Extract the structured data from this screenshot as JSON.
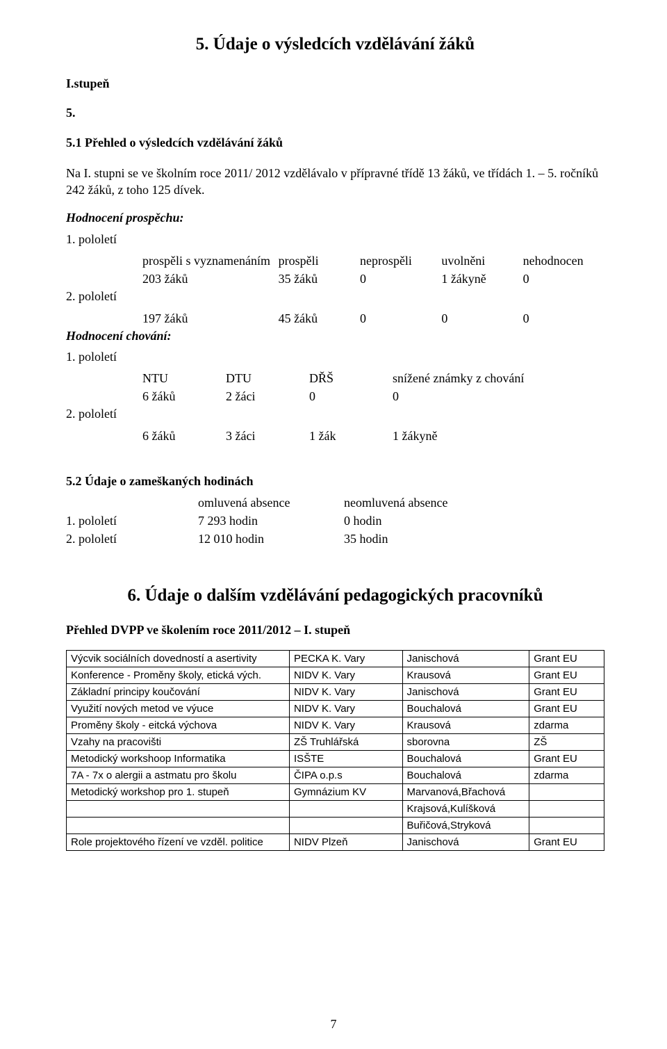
{
  "title_main": "5.   Údaje o výsledcích vzdělávání žáků",
  "stupen": "I.stupeň",
  "sec51_num": "5.",
  "sec51_title": "5.1 Přehled o výsledcích vzdělávání žáků",
  "para1": "Na I. stupni se ve školním roce 2011/ 2012 vzdělávalo v přípravné třídě 13 žáků, ve třídách 1. – 5. ročníků 242 žáků, z toho 125 dívek.",
  "hod_prospech_label": "Hodnocení prospěchu:",
  "pol1_label": "1. pololetí",
  "pol2_label": "2. pololetí",
  "prospech_headers": {
    "h1": "prospěli s vyznamenáním",
    "h2": "prospěli",
    "h3": "neprospěli",
    "h4": "uvolněni",
    "h5": "nehodnocen"
  },
  "prospech_row1": {
    "c1": "203 žáků",
    "c2": "35 žáků",
    "c3": "0",
    "c4": "1 žákyně",
    "c5": "0"
  },
  "prospech_row2": {
    "c1": "197 žáků",
    "c2": "45 žáků",
    "c3": "0",
    "c4": "0",
    "c5": "0"
  },
  "hod_chovani_label": "Hodnocení chování:",
  "chovani_headers": {
    "h1": "NTU",
    "h2": "DTU",
    "h3": "DŘŠ",
    "h4": "snížené známky z chování"
  },
  "chovani_row1": {
    "c1": "6 žáků",
    "c2": "2 žáci",
    "c3": "0",
    "c4": "0"
  },
  "chovani_row2": {
    "c1": "6 žáků",
    "c2": "3 žáci",
    "c3": "1 žák",
    "c4": "1 žákyně"
  },
  "sec52_title": "5.2 Údaje o zameškaných hodinách",
  "absence_headers": {
    "a": "omluvená absence",
    "b": "neomluvená absence"
  },
  "absence_row1": {
    "label": "1. pololetí",
    "a": "7 293 hodin",
    "b": "0 hodin"
  },
  "absence_row2": {
    "label": "2. pololetí",
    "a": "12 010 hodin",
    "b": "35 hodin"
  },
  "title_sec6": "6.  Údaje o dalším vzdělávání pedagogických pracovníků",
  "dvpp_title": "Přehled DVPP ve školením roce 2011/2012 – I. stupeň",
  "dvpp_rows": [
    {
      "a": "Výcvik sociálních dovedností a asertivity",
      "b": "PECKA K. Vary",
      "c": "Janischová",
      "d": "Grant EU"
    },
    {
      "a": "Konference - Proměny školy, etická vých.",
      "b": "NIDV K. Vary",
      "c": "Krausová",
      "d": "Grant EU"
    },
    {
      "a": "Základní principy koučování",
      "b": "NIDV K. Vary",
      "c": "Janischová",
      "d": "Grant EU"
    },
    {
      "a": "Využití nových metod ve výuce",
      "b": "NIDV K. Vary",
      "c": "Bouchalová",
      "d": "Grant EU"
    },
    {
      "a": "Proměny školy - eitcká výchova",
      "b": "NIDV K. Vary",
      "c": "Krausová",
      "d": "zdarma"
    },
    {
      "a": "Vzahy na pracovišti",
      "b": "ZŠ Truhlářská",
      "c": "sborovna",
      "d": "ZŠ"
    },
    {
      "a": "Metodický workshoop Informatika",
      "b": "ISŠTE",
      "c": "Bouchalová",
      "d": "Grant EU"
    },
    {
      "a": "7A - 7x o alergii a astmatu pro školu",
      "b": "ČIPA o.p.s",
      "c": "Bouchalová",
      "d": "zdarma"
    },
    {
      "a": "Metodický workshop pro 1. stupeň",
      "b": "Gymnázium KV",
      "c": "Marvanová,Břachová",
      "d": ""
    },
    {
      "a": "",
      "b": "",
      "c": "Krajsová,Kulíšková",
      "d": ""
    },
    {
      "a": "",
      "b": "",
      "c": "Buřičová,Stryková",
      "d": ""
    },
    {
      "a": "Role projektového řízení ve vzděl. politice",
      "b": "NIDV Plzeň",
      "c": "Janischová",
      "d": "Grant EU"
    }
  ],
  "page_number": "7"
}
